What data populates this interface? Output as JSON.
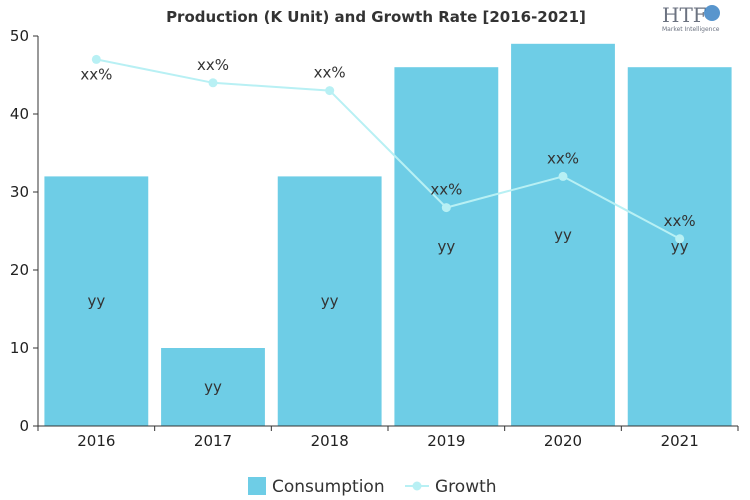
{
  "chart_data": {
    "type": "bar",
    "title": "Production (K Unit) and Growth Rate [2016-2021]",
    "categories": [
      "2016",
      "2017",
      "2018",
      "2019",
      "2020",
      "2021"
    ],
    "ylim": [
      0,
      50
    ],
    "yticks": [
      "0",
      "10",
      "20",
      "30",
      "40",
      "50"
    ],
    "grid": false,
    "legend_position": "bottom",
    "series": [
      {
        "name": "Consumption",
        "type": "bar",
        "color": "#6ecde6",
        "values": [
          32,
          10,
          32,
          46,
          49,
          46
        ],
        "labels": [
          "yy",
          "yy",
          "yy",
          "yy",
          "yy",
          "yy"
        ]
      },
      {
        "name": "Growth",
        "type": "line",
        "color": "#b8f0f4",
        "values": [
          47,
          44,
          43,
          28,
          32,
          24
        ],
        "labels": [
          "xx%",
          "xx%",
          "xx%",
          "xx%",
          "xx%",
          "xx%"
        ]
      }
    ]
  },
  "logo": {
    "text": "HTF",
    "subtext": "Market Intelligence"
  }
}
